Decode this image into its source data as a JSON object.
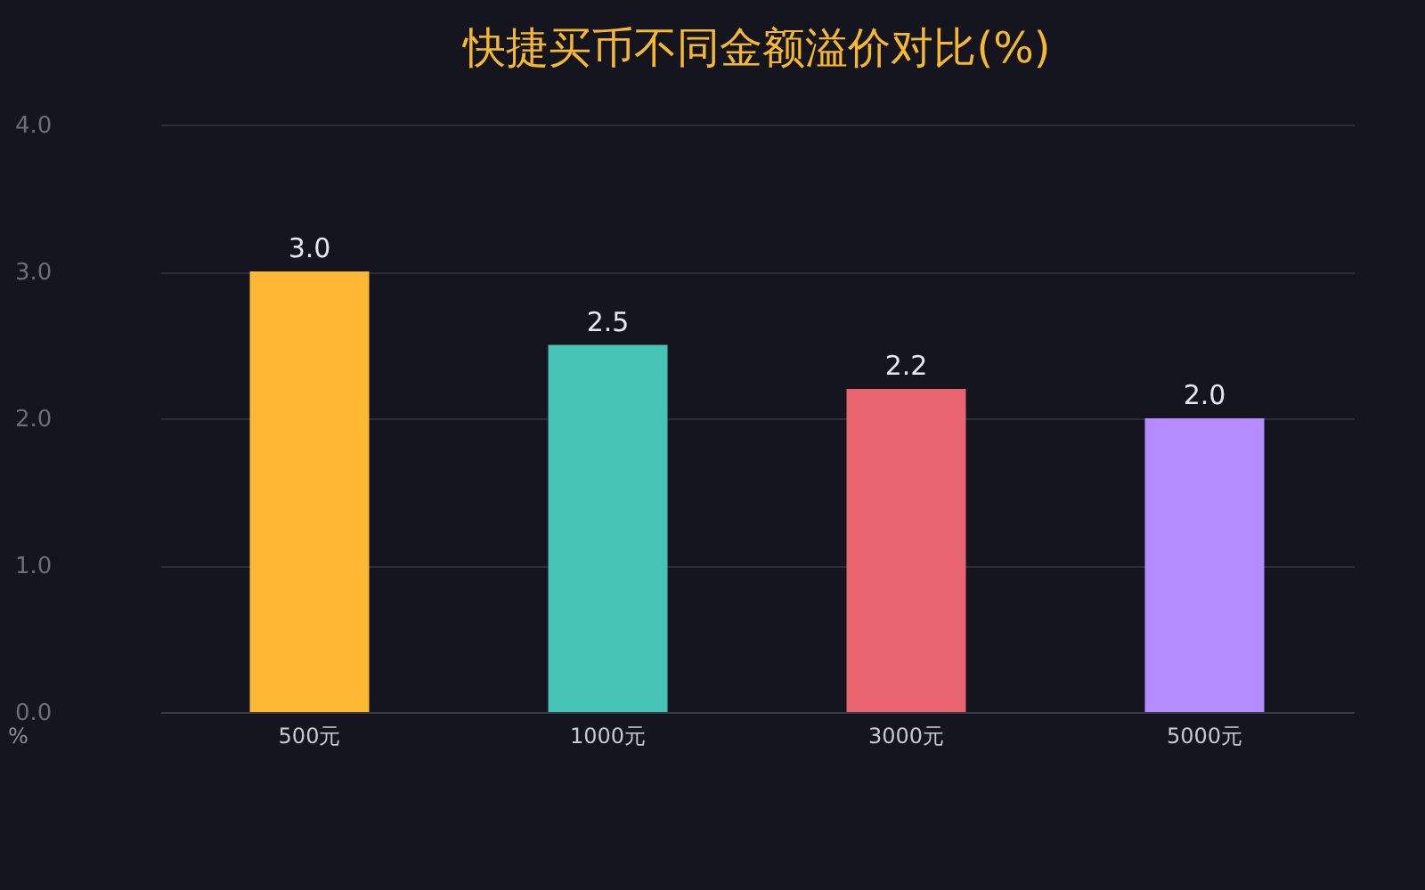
{
  "chart_data": {
    "type": "bar",
    "title": "快捷买币不同金额溢价对比(%)",
    "ylabel": "%",
    "categories": [
      "500元",
      "1000元",
      "3000元",
      "5000元"
    ],
    "values": [
      3.0,
      2.5,
      2.2,
      2.0
    ],
    "colors": [
      "#ffb833",
      "#45c4b5",
      "#e8646e",
      "#b48cff"
    ],
    "value_labels": [
      "3.0",
      "2.5",
      "2.2",
      "2.0"
    ],
    "ylim": [
      0,
      4
    ],
    "yticks": [
      {
        "value": 0,
        "label": "0.0"
      },
      {
        "value": 1,
        "label": "1.0"
      },
      {
        "value": 2,
        "label": "2.0"
      },
      {
        "value": 3,
        "label": "3.0"
      },
      {
        "value": 4,
        "label": "4.0"
      }
    ],
    "grid": "y"
  }
}
